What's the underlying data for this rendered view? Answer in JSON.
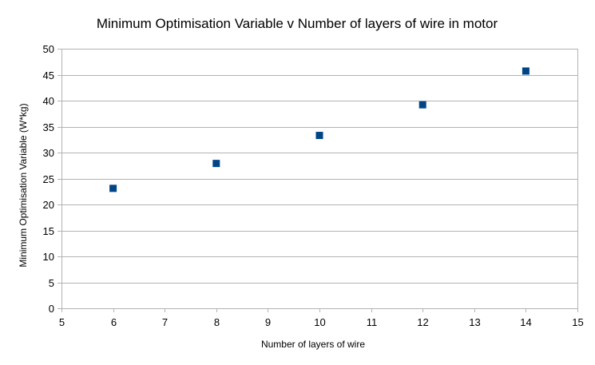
{
  "chart_data": {
    "type": "scatter",
    "title": "Minimum Optimisation Variable v Number of layers of wire in motor",
    "xlabel": "Number of layers of wire",
    "ylabel": "Minimum Optimisation Variable (W*kg)",
    "xlim": [
      5,
      15
    ],
    "ylim": [
      0,
      50
    ],
    "x_ticks": [
      5,
      6,
      7,
      8,
      9,
      10,
      11,
      12,
      13,
      14,
      15
    ],
    "y_ticks": [
      0,
      5,
      10,
      15,
      20,
      25,
      30,
      35,
      40,
      45,
      50
    ],
    "grid": "horizontal",
    "legend": "none",
    "series": [
      {
        "x": [
          6,
          8,
          10,
          12,
          14
        ],
        "y": [
          23.1,
          27.9,
          33.3,
          39.2,
          45.7
        ]
      }
    ],
    "colors": {
      "marker": "#004586",
      "grid": "#b3b3b3",
      "axis": "#b3b3b3"
    }
  }
}
